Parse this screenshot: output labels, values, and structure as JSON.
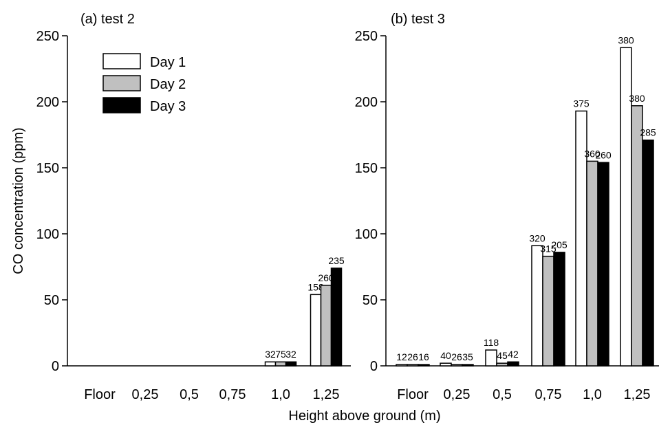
{
  "chart_data": [
    {
      "type": "bar",
      "title": "(a) test 2",
      "xlabel": "Height above ground (m)",
      "ylabel": "CO concentration (ppm)",
      "ylim": [
        0,
        250
      ],
      "yticks": [
        0,
        50,
        100,
        150,
        200,
        250
      ],
      "categories": [
        "Floor",
        "0,25",
        "0,5",
        "0,75",
        "1,0",
        "1,25"
      ],
      "series": [
        {
          "name": "Day 1",
          "color": "#ffffff",
          "values": [
            0,
            0,
            0,
            0,
            3,
            54
          ],
          "labels": [
            "",
            "",
            "",
            "",
            "32",
            "158"
          ]
        },
        {
          "name": "Day 2",
          "color": "#c0c0c0",
          "values": [
            0,
            0,
            0,
            0,
            3,
            61
          ],
          "labels": [
            "",
            "",
            "",
            "",
            "75",
            "260"
          ]
        },
        {
          "name": "Day 3",
          "color": "#000000",
          "values": [
            0,
            0,
            0,
            0,
            3,
            74
          ],
          "labels": [
            "",
            "",
            "",
            "",
            "32",
            "235"
          ]
        }
      ],
      "legend": "top-left"
    },
    {
      "type": "bar",
      "title": "(b) test 3",
      "xlabel": "Height above ground (m)",
      "ylabel": "",
      "ylim": [
        0,
        250
      ],
      "yticks": [
        0,
        50,
        100,
        150,
        200,
        250
      ],
      "categories": [
        "Floor",
        "0,25",
        "0,5",
        "0,75",
        "1,0",
        "1,25"
      ],
      "series": [
        {
          "name": "Day 1",
          "color": "#ffffff",
          "values": [
            1,
            2,
            12,
            91,
            193,
            241
          ],
          "labels": [
            "12",
            "40",
            "118",
            "320",
            "375",
            "380"
          ]
        },
        {
          "name": "Day 2",
          "color": "#c0c0c0",
          "values": [
            1,
            1,
            2,
            83,
            155,
            197
          ],
          "labels": [
            "26",
            "26",
            "45",
            "315",
            "360",
            "380"
          ]
        },
        {
          "name": "Day 3",
          "color": "#000000",
          "values": [
            1,
            1,
            3,
            86,
            154,
            171
          ],
          "labels": [
            "16",
            "35",
            "42",
            "205",
            "260",
            "285"
          ]
        }
      ]
    }
  ]
}
